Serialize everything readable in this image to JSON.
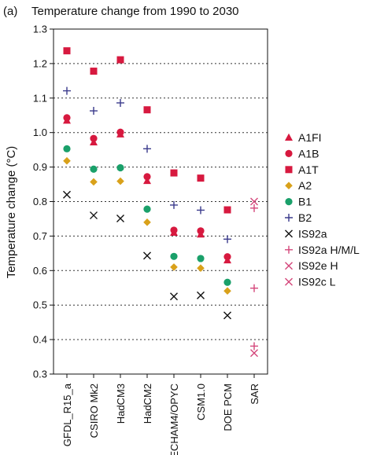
{
  "chart_data": {
    "type": "scatter",
    "panel_label": "(a)",
    "title": "Temperature change from 1990 to 2030",
    "xlabel": "",
    "ylabel": "Temperature change (°C)",
    "ylim": [
      0.3,
      1.3
    ],
    "yticks": [
      "0.3",
      "0.4",
      "0.5",
      "0.6",
      "0.7",
      "0.8",
      "0.9",
      "1.0",
      "1.1",
      "1.2",
      "1.3"
    ],
    "grid": "horizontal dotted",
    "legend_position": "right",
    "categories": [
      "GFDL_R15_a",
      "CSIRO Mk2",
      "HadCM3",
      "HadCM2",
      "ECHAM4/OPYC",
      "CSM1.0",
      "DOE PCM",
      "SAR"
    ],
    "series": [
      {
        "name": "A1FI",
        "marker": "triangle",
        "color": "#d7193f",
        "values": [
          1.035,
          0.972,
          0.995,
          0.86,
          0.71,
          0.705,
          0.63,
          null
        ]
      },
      {
        "name": "A1B",
        "marker": "circle",
        "color": "#d7193f",
        "values": [
          1.043,
          0.983,
          1.001,
          0.872,
          0.717,
          0.715,
          0.64,
          null
        ]
      },
      {
        "name": "A1T",
        "marker": "square",
        "color": "#d7193f",
        "values": [
          1.237,
          1.178,
          1.211,
          1.066,
          0.883,
          0.868,
          0.776,
          null
        ]
      },
      {
        "name": "A2",
        "marker": "diamond",
        "color": "#d9a11a",
        "values": [
          0.918,
          0.857,
          0.859,
          0.74,
          0.61,
          0.607,
          0.541,
          null
        ]
      },
      {
        "name": "B1",
        "marker": "circle",
        "color": "#1aa06a",
        "values": [
          0.953,
          0.894,
          0.898,
          0.778,
          0.641,
          0.635,
          0.566,
          null
        ]
      },
      {
        "name": "B2",
        "marker": "plus",
        "color": "#3a3a8c",
        "values": [
          1.121,
          1.063,
          1.086,
          0.953,
          0.79,
          0.775,
          0.691,
          null
        ]
      },
      {
        "name": "IS92a",
        "marker": "x",
        "color": "#111111",
        "values": [
          0.82,
          0.76,
          0.751,
          0.643,
          0.525,
          0.528,
          0.47,
          null
        ]
      },
      {
        "name": "IS92a H/M/L",
        "marker": "plus",
        "color": "#d4467a",
        "values": [
          null,
          null,
          null,
          null,
          null,
          null,
          null,
          0.781
        ]
      },
      {
        "name": "IS92e H",
        "marker": "x",
        "color": "#d4467a",
        "values": [
          null,
          null,
          null,
          null,
          null,
          null,
          null,
          0.8
        ]
      },
      {
        "name": "IS92c L",
        "marker": "x",
        "color": "#d4467a",
        "values": [
          null,
          null,
          null,
          null,
          null,
          null,
          null,
          0.361
        ]
      }
    ],
    "extra_points": [
      {
        "series": "IS92a H/M/L",
        "category": "SAR",
        "value": 0.549
      },
      {
        "series": "IS92a H/M/L",
        "category": "SAR",
        "value": 0.381
      }
    ]
  }
}
